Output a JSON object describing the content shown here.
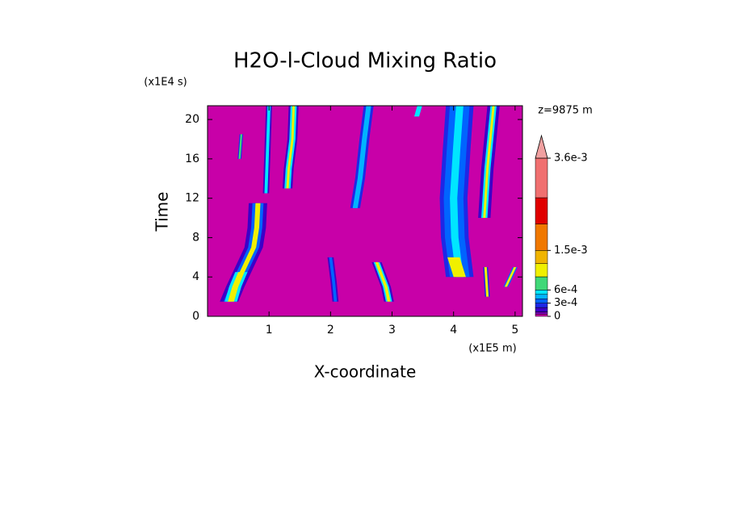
{
  "chart_data": {
    "type": "contour",
    "title": "H2O-l-Cloud Mixing Ratio",
    "x_label": "X-coordinate",
    "y_label": "Time",
    "x_unit": "(x1E5 m)",
    "y_unit": "(x1E4 s)",
    "annotation": "z=9875 m",
    "xlim": [
      0,
      5.12
    ],
    "xticks": [
      1,
      2,
      3,
      4,
      5
    ],
    "ylim": [
      0,
      21.4
    ],
    "yticks": [
      0,
      4,
      8,
      12,
      16,
      20
    ],
    "colorbar": {
      "levels": [
        0,
        5e-05,
        0.0001,
        0.0002,
        0.0003,
        0.0004,
        0.0005,
        0.0006,
        0.0009,
        0.0012,
        0.0015,
        0.0021,
        0.0027,
        0.0036
      ],
      "colors": [
        "#c800a8",
        "#7800b4",
        "#3c00c8",
        "#1e28e6",
        "#0064ff",
        "#00b4ff",
        "#00e6ff",
        "#40d878",
        "#f0f000",
        "#f0b400",
        "#f07800",
        "#e00000",
        "#f07070"
      ],
      "extend_color": "#f0a0a0",
      "lim": [
        0,
        0.0036
      ],
      "ticks": [
        0,
        {
          "value": 0.0003,
          "label": "3e-4"
        },
        {
          "value": 0.0006,
          "label": "6e-4"
        },
        {
          "value": 0.0015,
          "label": "1.5e-3"
        },
        {
          "value": 0.0036,
          "label": "3.6e-3"
        }
      ]
    },
    "streaks": [
      {
        "x": [
          0.35,
          0.45,
          0.6,
          0.75,
          0.8,
          0.82
        ],
        "y": [
          1.5,
          3,
          5,
          7,
          9,
          11.5
        ],
        "layers": [
          {
            "level": 2,
            "w": 0.3
          },
          {
            "level": 4,
            "w": 0.18
          },
          {
            "level": 8,
            "w": 0.08
          }
        ]
      },
      {
        "x": [
          0.38,
          0.45,
          0.55
        ],
        "y": [
          1.5,
          3,
          4.5
        ],
        "layers": [
          {
            "level": 6,
            "w": 0.2
          },
          {
            "level": 8,
            "w": 0.1
          }
        ]
      },
      {
        "x": [
          1.3,
          1.32,
          1.38,
          1.4
        ],
        "y": [
          13,
          15,
          18,
          21.4
        ],
        "layers": [
          {
            "level": 2,
            "w": 0.16
          },
          {
            "level": 6,
            "w": 0.1
          },
          {
            "level": 8,
            "w": 0.04
          }
        ]
      },
      {
        "x": [
          0.95,
          0.97,
          1.0
        ],
        "y": [
          12.5,
          16,
          21.4
        ],
        "layers": [
          {
            "level": 2,
            "w": 0.1
          },
          {
            "level": 6,
            "w": 0.05
          }
        ]
      },
      {
        "x": [
          0.52,
          0.55
        ],
        "y": [
          16,
          18.5
        ],
        "layers": [
          {
            "level": 3,
            "w": 0.06
          },
          {
            "level": 7,
            "w": 0.03
          }
        ]
      },
      {
        "x": [
          2.08,
          2.05,
          2.0
        ],
        "y": [
          1.5,
          3.5,
          6
        ],
        "layers": [
          {
            "level": 2,
            "w": 0.1
          },
          {
            "level": 4,
            "w": 0.05
          }
        ]
      },
      {
        "x": [
          2.95,
          2.9,
          2.75
        ],
        "y": [
          1.5,
          3,
          5.5
        ],
        "layers": [
          {
            "level": 2,
            "w": 0.16
          },
          {
            "level": 6,
            "w": 0.1
          },
          {
            "level": 8,
            "w": 0.05
          }
        ]
      },
      {
        "x": [
          2.4,
          2.48,
          2.55,
          2.62
        ],
        "y": [
          11,
          14,
          18,
          21.4
        ],
        "layers": [
          {
            "level": 3,
            "w": 0.16
          },
          {
            "level": 5,
            "w": 0.08
          }
        ]
      },
      {
        "x": [
          4.1,
          4.02,
          4.0,
          4.05,
          4.1
        ],
        "y": [
          4,
          8,
          12,
          17,
          21.4
        ],
        "layers": [
          {
            "level": 3,
            "w": 0.45
          },
          {
            "level": 4,
            "w": 0.32
          },
          {
            "level": 6,
            "w": 0.12
          }
        ]
      },
      {
        "x": [
          4.1,
          4.0
        ],
        "y": [
          4,
          6
        ],
        "layers": [
          {
            "level": 8,
            "w": 0.2
          }
        ]
      },
      {
        "x": [
          4.5,
          4.55,
          4.65
        ],
        "y": [
          10,
          15,
          21.4
        ],
        "layers": [
          {
            "level": 2,
            "w": 0.2
          },
          {
            "level": 6,
            "w": 0.1
          },
          {
            "level": 8,
            "w": 0.04
          }
        ]
      },
      {
        "x": [
          4.55,
          4.52
        ],
        "y": [
          2,
          5
        ],
        "layers": [
          {
            "level": 3,
            "w": 0.08
          },
          {
            "level": 8,
            "w": 0.04
          }
        ]
      },
      {
        "x": [
          4.85,
          5.0
        ],
        "y": [
          3,
          5
        ],
        "layers": [
          {
            "level": 4,
            "w": 0.08
          },
          {
            "level": 8,
            "w": 0.04
          }
        ]
      },
      {
        "x": [
          3.4,
          3.45
        ],
        "y": [
          20.3,
          21.4
        ],
        "layers": [
          {
            "level": 6,
            "w": 0.08
          }
        ]
      }
    ]
  }
}
